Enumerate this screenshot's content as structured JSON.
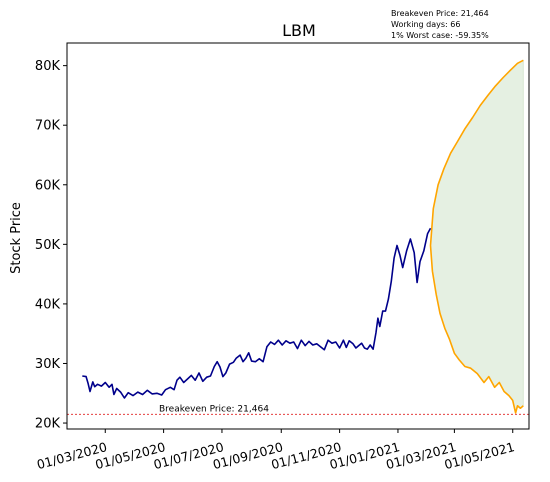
{
  "chart_data": {
    "type": "line",
    "title": "LBM",
    "xlabel": "",
    "ylabel": "Stock Price",
    "info_lines": [
      "Breakeven Price: 21,464",
      "Working days: 66",
      "1% Worst case: -59.35%"
    ],
    "x_ticks": [
      "01/03/2020",
      "01/05/2020",
      "01/07/2020",
      "01/09/2020",
      "01/11/2020",
      "01/01/2021",
      "01/03/2021",
      "01/05/2021"
    ],
    "y_ticks": [
      "20K",
      "30K",
      "40K",
      "50K",
      "60K",
      "70K",
      "80K"
    ],
    "x_range": [
      "2020-01-21",
      "2021-05-18"
    ],
    "ylim": [
      19000,
      83800
    ],
    "breakeven": {
      "value": 21464,
      "label": "Breakeven Price: 21,464",
      "color": "#e02020"
    },
    "series": [
      {
        "kind": "history",
        "color": "#00008b",
        "points": [
          [
            "2020-02-06",
            27900
          ],
          [
            "2020-02-10",
            27800
          ],
          [
            "2020-02-12",
            26700
          ],
          [
            "2020-02-14",
            25300
          ],
          [
            "2020-02-17",
            26900
          ],
          [
            "2020-02-19",
            26100
          ],
          [
            "2020-02-22",
            26500
          ],
          [
            "2020-02-26",
            26200
          ],
          [
            "2020-03-01",
            26800
          ],
          [
            "2020-03-05",
            26000
          ],
          [
            "2020-03-08",
            26500
          ],
          [
            "2020-03-10",
            24800
          ],
          [
            "2020-03-13",
            25800
          ],
          [
            "2020-03-17",
            25200
          ],
          [
            "2020-03-21",
            24200
          ],
          [
            "2020-03-25",
            25100
          ],
          [
            "2020-03-30",
            24600
          ],
          [
            "2020-04-04",
            25200
          ],
          [
            "2020-04-09",
            24800
          ],
          [
            "2020-04-14",
            25500
          ],
          [
            "2020-04-19",
            24900
          ],
          [
            "2020-04-24",
            25000
          ],
          [
            "2020-04-29",
            24700
          ],
          [
            "2020-05-03",
            25600
          ],
          [
            "2020-05-08",
            26000
          ],
          [
            "2020-05-12",
            25600
          ],
          [
            "2020-05-15",
            27200
          ],
          [
            "2020-05-18",
            27700
          ],
          [
            "2020-05-22",
            26800
          ],
          [
            "2020-05-26",
            27400
          ],
          [
            "2020-05-30",
            28000
          ],
          [
            "2020-06-03",
            27200
          ],
          [
            "2020-06-07",
            28400
          ],
          [
            "2020-06-11",
            27000
          ],
          [
            "2020-06-15",
            27700
          ],
          [
            "2020-06-19",
            27900
          ],
          [
            "2020-06-23",
            29500
          ],
          [
            "2020-06-26",
            30300
          ],
          [
            "2020-06-29",
            29400
          ],
          [
            "2020-07-02",
            27800
          ],
          [
            "2020-07-05",
            28400
          ],
          [
            "2020-07-09",
            29900
          ],
          [
            "2020-07-13",
            30200
          ],
          [
            "2020-07-16",
            30900
          ],
          [
            "2020-07-20",
            31400
          ],
          [
            "2020-07-23",
            30300
          ],
          [
            "2020-07-26",
            30900
          ],
          [
            "2020-07-29",
            31800
          ],
          [
            "2020-08-01",
            30400
          ],
          [
            "2020-08-05",
            30300
          ],
          [
            "2020-08-09",
            30800
          ],
          [
            "2020-08-13",
            30300
          ],
          [
            "2020-08-17",
            32800
          ],
          [
            "2020-08-21",
            33600
          ],
          [
            "2020-08-25",
            33200
          ],
          [
            "2020-08-29",
            33900
          ],
          [
            "2020-09-02",
            33100
          ],
          [
            "2020-09-06",
            33800
          ],
          [
            "2020-09-10",
            33400
          ],
          [
            "2020-09-14",
            33600
          ],
          [
            "2020-09-18",
            32500
          ],
          [
            "2020-09-22",
            33900
          ],
          [
            "2020-09-26",
            33000
          ],
          [
            "2020-09-30",
            33700
          ],
          [
            "2020-10-04",
            33100
          ],
          [
            "2020-10-08",
            33300
          ],
          [
            "2020-10-12",
            32800
          ],
          [
            "2020-10-16",
            32300
          ],
          [
            "2020-10-20",
            33900
          ],
          [
            "2020-10-24",
            33400
          ],
          [
            "2020-10-28",
            33600
          ],
          [
            "2020-11-01",
            32600
          ],
          [
            "2020-11-05",
            33900
          ],
          [
            "2020-11-08",
            32700
          ],
          [
            "2020-11-11",
            33800
          ],
          [
            "2020-11-15",
            33300
          ],
          [
            "2020-11-18",
            32600
          ],
          [
            "2020-11-21",
            33000
          ],
          [
            "2020-11-24",
            33400
          ],
          [
            "2020-11-27",
            32600
          ],
          [
            "2020-11-30",
            32400
          ],
          [
            "2020-12-03",
            33100
          ],
          [
            "2020-12-06",
            32400
          ],
          [
            "2020-12-09",
            35200
          ],
          [
            "2020-12-11",
            37600
          ],
          [
            "2020-12-13",
            36200
          ],
          [
            "2020-12-16",
            38800
          ],
          [
            "2020-12-19",
            38800
          ],
          [
            "2020-12-22",
            40800
          ],
          [
            "2020-12-25",
            43800
          ],
          [
            "2020-12-28",
            47700
          ],
          [
            "2020-12-31",
            49800
          ],
          [
            "2021-01-03",
            48200
          ],
          [
            "2021-01-06",
            46100
          ],
          [
            "2021-01-10",
            48900
          ],
          [
            "2021-01-14",
            50900
          ],
          [
            "2021-01-18",
            48600
          ],
          [
            "2021-01-21",
            43600
          ],
          [
            "2021-01-24",
            47100
          ],
          [
            "2021-01-28",
            48900
          ],
          [
            "2021-02-01",
            51800
          ],
          [
            "2021-02-04",
            52700
          ]
        ]
      },
      {
        "kind": "upper-bound",
        "color": "#ffa500",
        "points": [
          [
            "2021-02-04",
            49800
          ],
          [
            "2021-02-07",
            56000
          ],
          [
            "2021-02-12",
            60000
          ],
          [
            "2021-02-18",
            62700
          ],
          [
            "2021-02-25",
            65300
          ],
          [
            "2021-03-04",
            67200
          ],
          [
            "2021-03-12",
            69400
          ],
          [
            "2021-03-20",
            71300
          ],
          [
            "2021-03-28",
            73300
          ],
          [
            "2021-04-05",
            75000
          ],
          [
            "2021-04-13",
            76600
          ],
          [
            "2021-04-21",
            78000
          ],
          [
            "2021-04-29",
            79300
          ],
          [
            "2021-05-06",
            80400
          ],
          [
            "2021-05-12",
            80900
          ]
        ]
      },
      {
        "kind": "lower-bound",
        "color": "#ffa500",
        "points": [
          [
            "2021-02-04",
            49800
          ],
          [
            "2021-02-06",
            45500
          ],
          [
            "2021-02-10",
            41600
          ],
          [
            "2021-02-14",
            38400
          ],
          [
            "2021-02-19",
            35900
          ],
          [
            "2021-02-24",
            34000
          ],
          [
            "2021-03-01",
            31700
          ],
          [
            "2021-03-06",
            30600
          ],
          [
            "2021-03-12",
            29500
          ],
          [
            "2021-03-18",
            29200
          ],
          [
            "2021-03-25",
            28300
          ],
          [
            "2021-04-01",
            26800
          ],
          [
            "2021-04-06",
            27800
          ],
          [
            "2021-04-12",
            26000
          ],
          [
            "2021-04-17",
            26800
          ],
          [
            "2021-04-22",
            25300
          ],
          [
            "2021-04-27",
            24600
          ],
          [
            "2021-05-01",
            23800
          ],
          [
            "2021-05-04",
            21700
          ],
          [
            "2021-05-06",
            22900
          ],
          [
            "2021-05-09",
            22500
          ],
          [
            "2021-05-12",
            22900
          ]
        ]
      }
    ],
    "band_color": "#e5f0e2",
    "grid": false,
    "legend": "none"
  }
}
